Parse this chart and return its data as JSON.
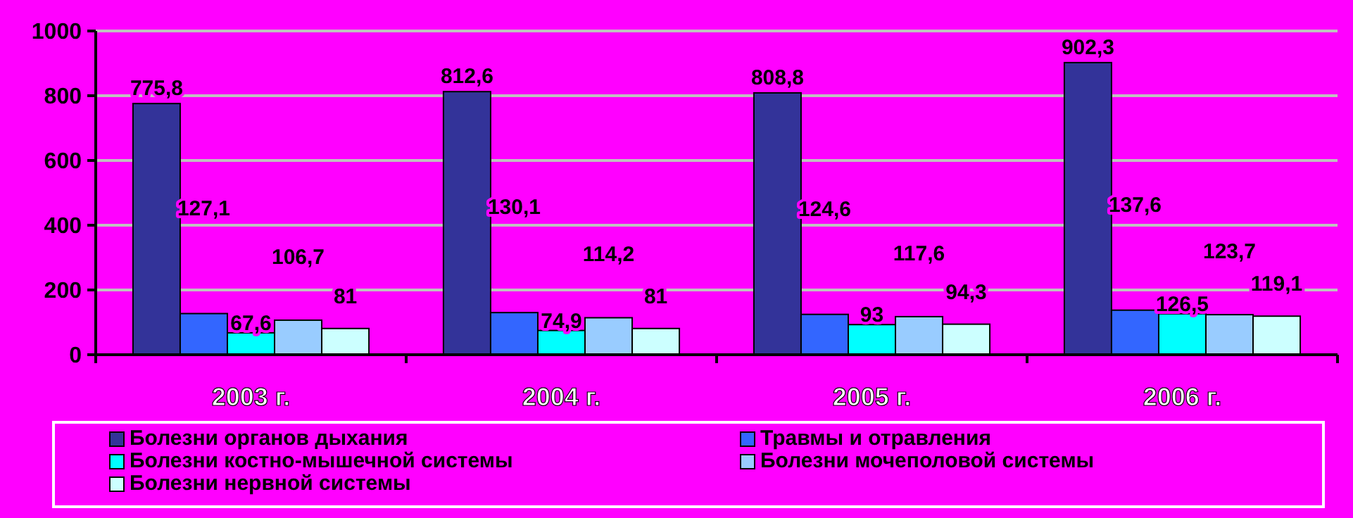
{
  "chart_data": {
    "type": "bar",
    "categories": [
      "2003 г.",
      "2004 г.",
      "2005 г.",
      "2006 г."
    ],
    "series": [
      {
        "name": "Болезни органов дыхания",
        "color": "#333399",
        "values": [
          775.8,
          812.6,
          808.8,
          902.3
        ]
      },
      {
        "name": "Травмы и отравления",
        "color": "#3366ff",
        "values": [
          127.1,
          130.1,
          124.6,
          137.6
        ]
      },
      {
        "name": "Болезни костно-мышечной системы",
        "color": "#00ffff",
        "values": [
          67.6,
          74.9,
          93,
          126.5
        ]
      },
      {
        "name": "Болезни мочеполовой системы",
        "color": "#99ccff",
        "values": [
          106.7,
          114.2,
          117.6,
          123.7
        ]
      },
      {
        "name": "Болезни нервной системы",
        "color": "#ccffff",
        "values": [
          81,
          81,
          94.3,
          119.1
        ]
      }
    ],
    "value_labels": [
      [
        "775,8",
        "812,6",
        "808,8",
        "902,3"
      ],
      [
        "127,1",
        "130,1",
        "124,6",
        "137,6"
      ],
      [
        "67,6",
        "74,9",
        "93",
        "126,5"
      ],
      [
        "106,7",
        "114,2",
        "117,6",
        "123,7"
      ],
      [
        "81",
        "81",
        "94,3",
        "119,1"
      ]
    ],
    "ylim": [
      0,
      1000
    ],
    "yticks": [
      0,
      200,
      400,
      600,
      800,
      1000
    ],
    "grid": "y",
    "legend": "bottom"
  }
}
